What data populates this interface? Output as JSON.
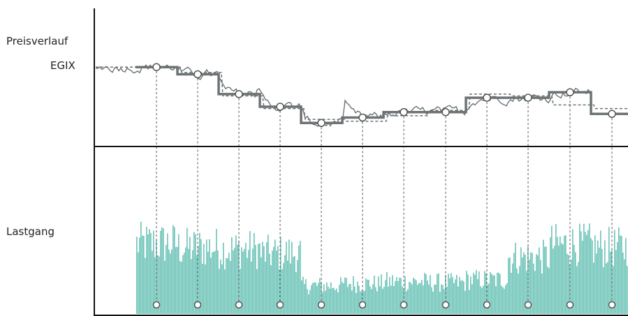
{
  "labels": {
    "price": "Preisverlauf",
    "index": "EGIX",
    "load": "Lastgang"
  },
  "colors": {
    "load_bars": "#6cc3b7",
    "price_lines": "#6d7275",
    "axis": "#111111",
    "markers": "#ffffff"
  },
  "chart_data": [
    {
      "type": "line",
      "title": "",
      "series": [
        {
          "name": "Preisverlauf",
          "style": "thick step",
          "x": [
            1,
            2,
            3,
            4,
            5,
            6,
            7,
            8,
            9,
            10,
            11,
            12
          ],
          "values": [
            86,
            82,
            71,
            64,
            55,
            58,
            61,
            61,
            69,
            69,
            72,
            60
          ]
        },
        {
          "name": "",
          "style": "thin noisy",
          "values": "daily price fluctuation around the monthly steps"
        },
        {
          "name": "EGIX",
          "style": "dashed step"
        }
      ],
      "ylim": [
        40,
        100
      ],
      "grid": false
    },
    {
      "type": "bar",
      "title": "",
      "description_months": 12,
      "monthly_load_level": [
        0.72,
        0.68,
        0.66,
        0.62,
        0.29,
        0.31,
        0.33,
        0.32,
        0.35,
        0.58,
        0.71,
        0.68
      ],
      "ylim": [
        0,
        1
      ]
    }
  ]
}
